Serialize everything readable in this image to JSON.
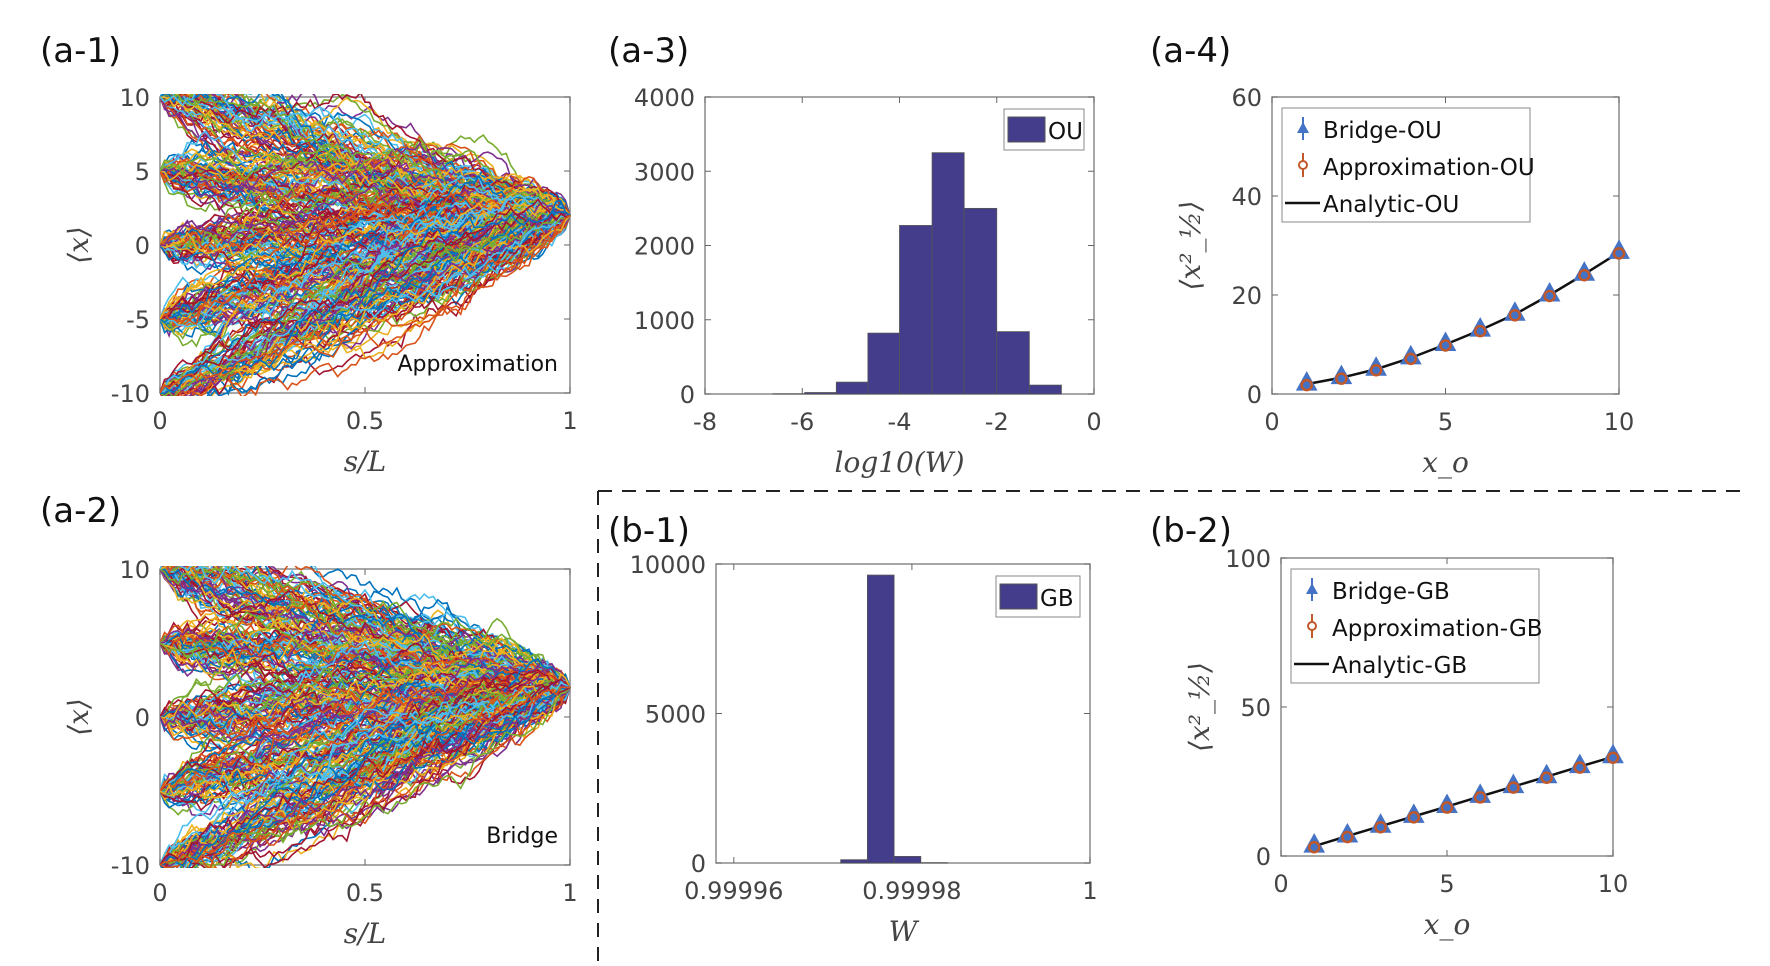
{
  "chart_data": [
    {
      "id": "a1",
      "panel_label": "(a-1)",
      "type": "line",
      "title": "",
      "annotation": "Approximation",
      "xlabel": "s/L",
      "ylabel": "⟨x⟩",
      "xlim": [
        0,
        1
      ],
      "ylim": [
        -10,
        10
      ],
      "xticks": [
        "0",
        "0.5",
        "1"
      ],
      "xtick_values": [
        0,
        0.5,
        1
      ],
      "yticks": [
        "10",
        "5",
        "0",
        "-5",
        "-10"
      ],
      "ytick_values": [
        10,
        5,
        0,
        -5,
        -10
      ],
      "description": "Many stochastic trajectories starting from x0 in {10,5,0,-5,-10} at s/L=0 converging to x≈2 at s/L=1",
      "start_values": [
        10,
        5,
        0,
        -5,
        -10
      ],
      "end_value": 2
    },
    {
      "id": "a2",
      "panel_label": "(a-2)",
      "type": "line",
      "annotation": "Bridge",
      "xlabel": "s/L",
      "ylabel": "⟨x⟩",
      "xlim": [
        0,
        1
      ],
      "ylim": [
        -10,
        10
      ],
      "xticks": [
        "0",
        "0.5",
        "1"
      ],
      "xtick_values": [
        0,
        0.5,
        1
      ],
      "yticks": [
        "10",
        "0",
        "-10"
      ],
      "ytick_values": [
        10,
        0,
        -10
      ],
      "start_values": [
        10,
        5,
        0,
        -5,
        -10
      ],
      "end_value": 2
    },
    {
      "id": "a3",
      "panel_label": "(a-3)",
      "type": "bar",
      "xlabel": "log10(W)",
      "ylabel": "",
      "xlim": [
        -8,
        0
      ],
      "ylim": [
        0,
        4000
      ],
      "xticks": [
        "-8",
        "-6",
        "-4",
        "-2",
        "0"
      ],
      "xtick_values": [
        -8,
        -6,
        -4,
        -2,
        0
      ],
      "yticks": [
        "4000",
        "3000",
        "2000",
        "1000",
        "0"
      ],
      "ytick_values": [
        4000,
        3000,
        2000,
        1000,
        0
      ],
      "legend": [
        "OU"
      ],
      "legend_position": "top-right",
      "bin_edges": [
        -6.6,
        -5.95,
        -5.3,
        -4.65,
        -4.0,
        -3.33,
        -2.67,
        -2.0,
        -1.33,
        -0.67
      ],
      "values": [
        3,
        20,
        160,
        820,
        2270,
        3250,
        2500,
        840,
        120
      ]
    },
    {
      "id": "a4",
      "panel_label": "(a-4)",
      "type": "scatter",
      "xlabel": "x_o",
      "ylabel": "⟨x²_½⟩",
      "xlim": [
        0,
        10
      ],
      "ylim": [
        0,
        60
      ],
      "xticks": [
        "0",
        "5",
        "10"
      ],
      "xtick_values": [
        0,
        5,
        10
      ],
      "yticks": [
        "60",
        "40",
        "20",
        "0"
      ],
      "ytick_values": [
        60,
        40,
        20,
        0
      ],
      "legend": [
        "Bridge-OU",
        "Approximation-OU",
        "Analytic-OU"
      ],
      "legend_position": "top-left",
      "x": [
        1,
        2,
        3,
        4,
        5,
        6,
        7,
        8,
        9,
        10
      ],
      "series": [
        {
          "name": "Bridge-OU",
          "marker": "triangle",
          "color": "#4472c4",
          "values": [
            2.0,
            3.3,
            5.0,
            7.3,
            10.0,
            12.9,
            16.1,
            20.0,
            24.2,
            28.6
          ]
        },
        {
          "name": "Approximation-OU",
          "marker": "circle",
          "color": "#c0582a",
          "values": [
            2.0,
            3.3,
            5.0,
            7.3,
            10.0,
            12.9,
            16.1,
            20.0,
            24.2,
            28.6
          ]
        },
        {
          "name": "Analytic-OU",
          "marker": "line",
          "color": "#111111",
          "values": [
            2.0,
            3.3,
            5.0,
            7.3,
            10.0,
            12.9,
            16.1,
            20.0,
            24.2,
            28.6
          ]
        }
      ]
    },
    {
      "id": "b1",
      "panel_label": "(b-1)",
      "type": "bar",
      "xlabel": "W",
      "ylabel": "",
      "xlim": [
        0.999958,
        1.0
      ],
      "ylim": [
        0,
        10000
      ],
      "xticks": [
        "0.99996",
        "0.99998",
        "1"
      ],
      "xtick_values": [
        0.99996,
        0.99998,
        1.0
      ],
      "yticks": [
        "10000",
        "5000",
        "0"
      ],
      "ytick_values": [
        10000,
        5000,
        0
      ],
      "legend": [
        "GB"
      ],
      "legend_position": "top-right",
      "bin_edges": [
        0.999972,
        0.999975,
        0.999978,
        0.999981,
        0.999984
      ],
      "values": [
        110,
        9630,
        220,
        10
      ]
    },
    {
      "id": "b2",
      "panel_label": "(b-2)",
      "type": "scatter",
      "xlabel": "x_o",
      "ylabel": "⟨x²_½⟩",
      "xlim": [
        0,
        10
      ],
      "ylim": [
        0,
        100
      ],
      "xticks": [
        "0",
        "5",
        "10"
      ],
      "xtick_values": [
        0,
        5,
        10
      ],
      "yticks": [
        "100",
        "50",
        "0"
      ],
      "ytick_values": [
        100,
        50,
        0
      ],
      "legend": [
        "Bridge-GB",
        "Approximation-GB",
        "Analytic-GB"
      ],
      "legend_position": "top-left",
      "x": [
        1,
        2,
        3,
        4,
        5,
        6,
        7,
        8,
        9,
        10
      ],
      "series": [
        {
          "name": "Bridge-GB",
          "marker": "triangle",
          "color": "#4472c4",
          "values": [
            3.3,
            6.7,
            10.0,
            13.3,
            16.6,
            20.0,
            23.3,
            26.6,
            30.0,
            33.3
          ]
        },
        {
          "name": "Approximation-GB",
          "marker": "circle",
          "color": "#c0582a",
          "values": [
            3.3,
            6.7,
            10.0,
            13.3,
            16.6,
            20.0,
            23.3,
            26.6,
            30.0,
            33.3
          ]
        },
        {
          "name": "Analytic-GB",
          "marker": "line",
          "color": "#111111",
          "values": [
            3.3,
            6.7,
            10.0,
            13.3,
            16.6,
            20.0,
            23.3,
            26.6,
            30.0,
            33.3
          ]
        }
      ]
    }
  ],
  "colors": {
    "bar_fill": "#433d8b",
    "bridge": "#4472c4",
    "approx": "#c0582a",
    "analytic": "#111111",
    "trajectory_palette": [
      "#0072bd",
      "#d95319",
      "#edb120",
      "#7e2f8e",
      "#77ac30",
      "#4dbeee",
      "#a2142f"
    ]
  }
}
